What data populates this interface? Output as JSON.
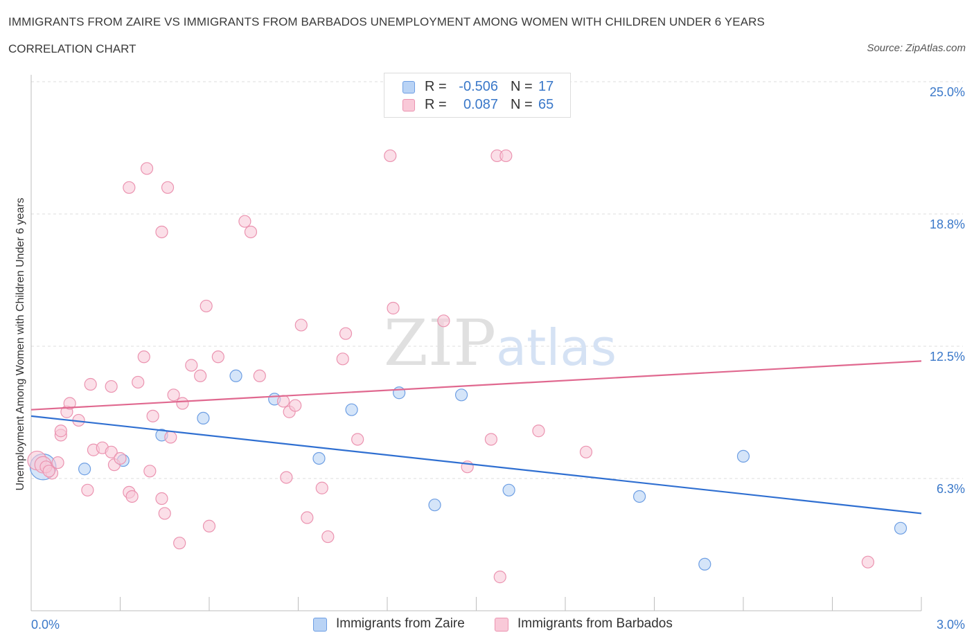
{
  "header": {
    "title": "IMMIGRANTS FROM ZAIRE VS IMMIGRANTS FROM BARBADOS UNEMPLOYMENT AMONG WOMEN WITH CHILDREN UNDER 6 YEARS",
    "subtitle": "CORRELATION CHART",
    "source": "Source: ZipAtlas.com"
  },
  "watermark": {
    "zip": "ZIP",
    "atlas": "atlas"
  },
  "legend_top": {
    "rows": [
      {
        "r_label": "R =",
        "r_value": "-0.506",
        "n_label": "N =",
        "n_value": "17"
      },
      {
        "r_label": "R =",
        "r_value": "0.087",
        "n_label": "N =",
        "n_value": "65"
      }
    ]
  },
  "legend_bottom": {
    "items": [
      {
        "label": "Immigrants from Zaire"
      },
      {
        "label": "Immigrants from Barbados"
      }
    ]
  },
  "colors": {
    "zaire_fill": "#b9d3f5",
    "zaire_stroke": "#6d9ee3",
    "zaire_line": "#2f6fd1",
    "barbados_fill": "#f9c9d8",
    "barbados_stroke": "#eb93b0",
    "barbados_line": "#e0688f",
    "tick_label": "#3a78c9",
    "grid": "#dcdcdc"
  },
  "chart_data": {
    "type": "scatter",
    "xlabel": "",
    "ylabel": "Unemployment Among Women with Children Under 6 years",
    "xlim": [
      0,
      3.0
    ],
    "ylim": [
      0,
      25.0
    ],
    "x_tick_labels": [
      {
        "value": 0,
        "label": "0.0%"
      },
      {
        "value": 3.0,
        "label": "3.0%"
      }
    ],
    "y_tick_labels": [
      {
        "value": 6.25,
        "label": "6.3%"
      },
      {
        "value": 12.5,
        "label": "12.5%"
      },
      {
        "value": 18.75,
        "label": "18.8%"
      },
      {
        "value": 25.0,
        "label": "25.0%"
      }
    ],
    "grid": "horizontal dashed",
    "series": [
      {
        "name": "Immigrants from Zaire",
        "points": [
          [
            0.04,
            6.8,
            2.2
          ],
          [
            0.18,
            6.7,
            1
          ],
          [
            0.31,
            7.1,
            1
          ],
          [
            0.44,
            8.3,
            1
          ],
          [
            0.58,
            9.1,
            1
          ],
          [
            0.69,
            11.1,
            1
          ],
          [
            0.82,
            10.0,
            1
          ],
          [
            0.97,
            7.2,
            1
          ],
          [
            1.08,
            9.5,
            1
          ],
          [
            1.24,
            10.3,
            1
          ],
          [
            1.36,
            5.0,
            1
          ],
          [
            1.45,
            10.2,
            1
          ],
          [
            1.61,
            5.7,
            1
          ],
          [
            2.05,
            5.4,
            1
          ],
          [
            2.27,
            2.2,
            1
          ],
          [
            2.4,
            7.3,
            1
          ],
          [
            2.93,
            3.9,
            1
          ]
        ],
        "trend": [
          [
            0.0,
            9.2
          ],
          [
            3.0,
            4.6
          ]
        ]
      },
      {
        "name": "Immigrants from Barbados",
        "points": [
          [
            0.02,
            7.1,
            1.6
          ],
          [
            0.04,
            6.9,
            1.4
          ],
          [
            0.07,
            6.5,
            1
          ],
          [
            0.05,
            6.8,
            1
          ],
          [
            0.06,
            6.6,
            1
          ],
          [
            0.09,
            7.0,
            1
          ],
          [
            0.1,
            8.3,
            1
          ],
          [
            0.1,
            8.5,
            1
          ],
          [
            0.12,
            9.4,
            1
          ],
          [
            0.13,
            9.8,
            1
          ],
          [
            0.16,
            9.0,
            1
          ],
          [
            0.19,
            5.7,
            1
          ],
          [
            0.2,
            10.7,
            1
          ],
          [
            0.21,
            7.6,
            1
          ],
          [
            0.24,
            7.7,
            1
          ],
          [
            0.27,
            7.5,
            1
          ],
          [
            0.27,
            10.6,
            1
          ],
          [
            0.28,
            6.9,
            1
          ],
          [
            0.3,
            7.2,
            1
          ],
          [
            0.33,
            5.6,
            1
          ],
          [
            0.34,
            5.4,
            1
          ],
          [
            0.36,
            10.8,
            1
          ],
          [
            0.38,
            12.0,
            1
          ],
          [
            0.41,
            9.2,
            1
          ],
          [
            0.4,
            6.6,
            1
          ],
          [
            0.44,
            5.3,
            1
          ],
          [
            0.45,
            4.6,
            1
          ],
          [
            0.47,
            8.2,
            1
          ],
          [
            0.48,
            10.2,
            1
          ],
          [
            0.5,
            3.2,
            1
          ],
          [
            0.51,
            9.8,
            1
          ],
          [
            0.54,
            11.6,
            1
          ],
          [
            0.57,
            11.1,
            1
          ],
          [
            0.59,
            14.4,
            1
          ],
          [
            0.6,
            4.0,
            1
          ],
          [
            0.63,
            12.0,
            1
          ],
          [
            0.72,
            18.4,
            1
          ],
          [
            0.74,
            17.9,
            1
          ],
          [
            0.77,
            11.1,
            1
          ],
          [
            0.85,
            9.9,
            1
          ],
          [
            0.87,
            9.4,
            1
          ],
          [
            0.89,
            9.7,
            1
          ],
          [
            0.91,
            13.5,
            1
          ],
          [
            0.93,
            4.4,
            1
          ],
          [
            0.98,
            5.8,
            1
          ],
          [
            1.0,
            3.5,
            1
          ],
          [
            1.06,
            13.1,
            1
          ],
          [
            1.05,
            11.9,
            1
          ],
          [
            1.1,
            8.1,
            1
          ],
          [
            1.21,
            21.5,
            1
          ],
          [
            1.22,
            14.3,
            1
          ],
          [
            1.39,
            13.7,
            1
          ],
          [
            1.47,
            6.8,
            1
          ],
          [
            1.55,
            8.1,
            1
          ],
          [
            1.57,
            21.5,
            1
          ],
          [
            1.6,
            21.5,
            1
          ],
          [
            1.58,
            1.6,
            1
          ],
          [
            1.71,
            8.5,
            1
          ],
          [
            1.87,
            7.5,
            1
          ],
          [
            2.82,
            2.3,
            1
          ],
          [
            0.33,
            20.0,
            1
          ],
          [
            0.39,
            20.9,
            1
          ],
          [
            0.44,
            17.9,
            1
          ],
          [
            0.46,
            20.0,
            1
          ],
          [
            0.86,
            6.3,
            1
          ]
        ],
        "trend": [
          [
            0.0,
            9.5
          ],
          [
            3.0,
            11.8
          ]
        ]
      }
    ]
  }
}
